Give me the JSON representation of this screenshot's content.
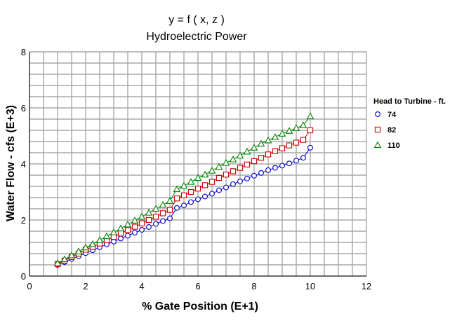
{
  "chart_data": {
    "type": "line",
    "title": "y = f ( x, z )",
    "subtitle": "Hydroelectric Power",
    "xlabel": "% Gate Position  (E+1)",
    "ylabel": "Water Flow - cfs  (E+3)",
    "xlim": [
      0,
      12
    ],
    "ylim": [
      0,
      8
    ],
    "xticks": [
      "0",
      "2",
      "4",
      "6",
      "8",
      "10",
      "12"
    ],
    "yticks": [
      "0",
      "2",
      "4",
      "6",
      "8"
    ],
    "grid": true,
    "legend_title": "Head to Turbine - ft.",
    "legend_position": "right",
    "x": [
      1.0,
      1.25,
      1.5,
      1.75,
      2.0,
      2.25,
      2.5,
      2.75,
      3.0,
      3.25,
      3.5,
      3.75,
      4.0,
      4.25,
      4.5,
      4.75,
      5.0,
      5.25,
      5.5,
      5.75,
      6.0,
      6.25,
      6.5,
      6.75,
      7.0,
      7.25,
      7.5,
      7.75,
      8.0,
      8.25,
      8.5,
      8.75,
      9.0,
      9.25,
      9.5,
      9.75,
      10.0
    ],
    "series": [
      {
        "name": "74",
        "marker": "circle",
        "color": "#0000cc",
        "values": [
          0.4,
          0.5,
          0.61,
          0.71,
          0.82,
          0.92,
          1.03,
          1.13,
          1.23,
          1.34,
          1.44,
          1.55,
          1.65,
          1.75,
          1.86,
          1.96,
          2.06,
          2.43,
          2.52,
          2.64,
          2.74,
          2.84,
          2.94,
          3.06,
          3.16,
          3.28,
          3.38,
          3.48,
          3.58,
          3.68,
          3.78,
          3.86,
          3.94,
          4.02,
          4.12,
          4.22,
          4.58
        ]
      },
      {
        "name": "82",
        "marker": "square",
        "color": "#cc0000",
        "values": [
          0.43,
          0.55,
          0.68,
          0.8,
          0.94,
          1.04,
          1.16,
          1.28,
          1.4,
          1.52,
          1.64,
          1.76,
          1.88,
          2.0,
          2.12,
          2.24,
          2.36,
          2.77,
          2.88,
          3.0,
          3.12,
          3.24,
          3.36,
          3.5,
          3.62,
          3.74,
          3.86,
          3.98,
          4.1,
          4.22,
          4.34,
          4.46,
          4.56,
          4.66,
          4.76,
          4.86,
          5.2
        ]
      },
      {
        "name": "110",
        "marker": "triangle",
        "color": "#008000",
        "values": [
          0.46,
          0.6,
          0.74,
          0.88,
          1.02,
          1.14,
          1.28,
          1.42,
          1.56,
          1.7,
          1.84,
          1.98,
          2.12,
          2.26,
          2.4,
          2.54,
          2.68,
          3.1,
          3.22,
          3.36,
          3.5,
          3.62,
          3.76,
          3.9,
          4.04,
          4.16,
          4.3,
          4.44,
          4.58,
          4.72,
          4.84,
          4.96,
          5.08,
          5.18,
          5.28,
          5.38,
          5.7
        ]
      }
    ]
  }
}
